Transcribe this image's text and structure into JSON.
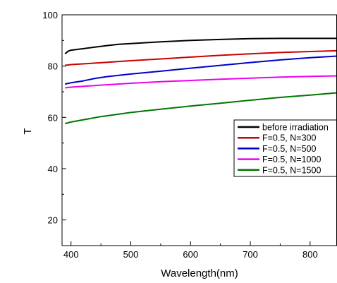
{
  "chart_data": {
    "type": "line",
    "title": "",
    "xlabel": "Wavelength(nm)",
    "ylabel": "T",
    "xlim": [
      385,
      845
    ],
    "ylim": [
      10,
      100
    ],
    "x_ticks": [
      400,
      500,
      600,
      700,
      800
    ],
    "y_ticks": [
      20,
      40,
      60,
      80,
      100
    ],
    "grid": false,
    "legend_position": "center-right",
    "series": [
      {
        "name": "before irradiation",
        "color": "#000000",
        "x": [
          390,
          395,
          400,
          420,
          440,
          460,
          480,
          500,
          550,
          600,
          650,
          700,
          750,
          800,
          845
        ],
        "y": [
          84.8,
          85.8,
          86.2,
          86.8,
          87.4,
          88.0,
          88.5,
          88.8,
          89.5,
          90.0,
          90.4,
          90.7,
          90.8,
          90.8,
          90.8
        ]
      },
      {
        "name": "F=0.5, N=300",
        "color": "#cc0000",
        "x": [
          390,
          400,
          450,
          500,
          550,
          600,
          650,
          700,
          750,
          800,
          845
        ],
        "y": [
          80.3,
          80.6,
          81.3,
          82.1,
          82.8,
          83.5,
          84.2,
          84.8,
          85.3,
          85.7,
          86.0
        ]
      },
      {
        "name": "F=0.5, N=500",
        "color": "#0000cc",
        "x": [
          390,
          400,
          420,
          440,
          460,
          480,
          500,
          550,
          600,
          650,
          700,
          750,
          800,
          845
        ],
        "y": [
          73.0,
          73.5,
          74.2,
          75.2,
          75.9,
          76.4,
          76.9,
          78.0,
          79.2,
          80.3,
          81.4,
          82.4,
          83.3,
          83.9
        ]
      },
      {
        "name": "F=0.5, N=1000",
        "color": "#ee00ee",
        "x": [
          390,
          400,
          450,
          500,
          550,
          600,
          650,
          700,
          750,
          800,
          845
        ],
        "y": [
          71.5,
          71.8,
          72.6,
          73.3,
          73.9,
          74.4,
          74.9,
          75.3,
          75.7,
          76.0,
          76.2
        ]
      },
      {
        "name": "F=0.5, N=1500",
        "color": "#007700",
        "x": [
          390,
          400,
          450,
          500,
          550,
          600,
          650,
          700,
          750,
          800,
          845
        ],
        "y": [
          57.6,
          58.2,
          60.3,
          61.9,
          63.2,
          64.4,
          65.5,
          66.7,
          67.8,
          68.7,
          69.6
        ]
      }
    ]
  }
}
